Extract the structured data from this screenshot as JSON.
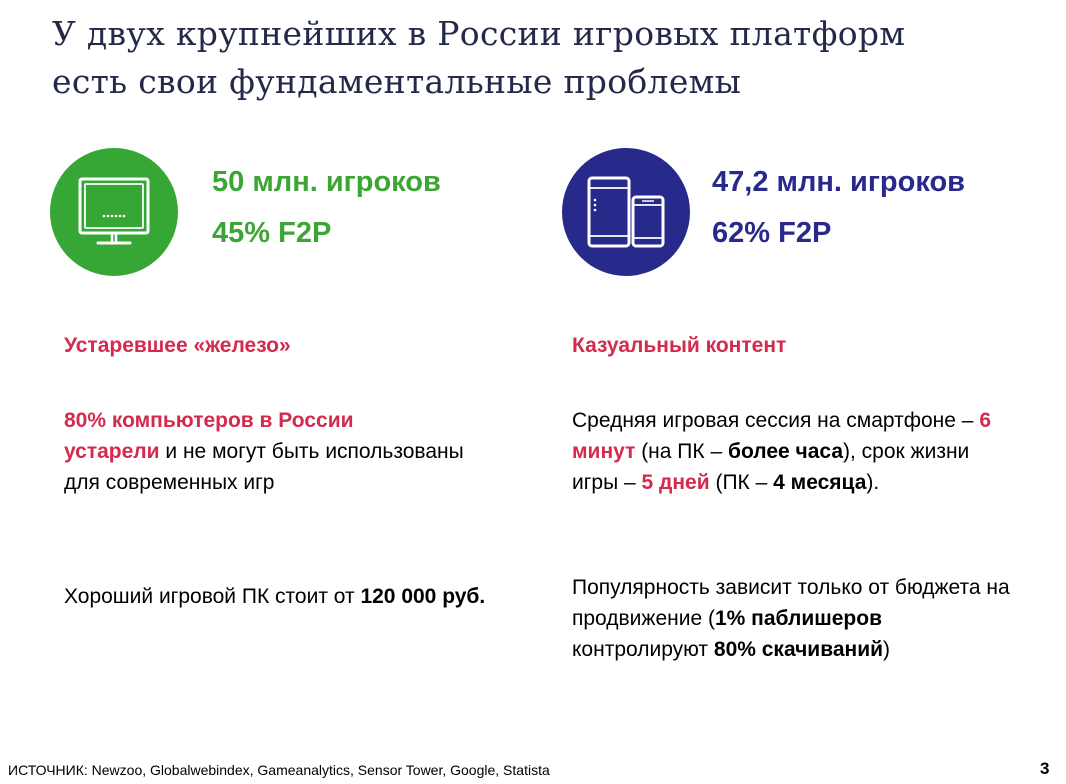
{
  "title": {
    "line1": "У двух крупнейших в России игровых платформ",
    "line2": "есть свои фундаментальные проблемы"
  },
  "colors": {
    "title": "#24294a",
    "pc_green": "#3ca536",
    "mobile_blue": "#27298b",
    "accent_red": "#d42a4e"
  },
  "pc": {
    "icon": "monitor-icon",
    "players": "50 млн. игроков",
    "f2p": "45% F2P",
    "heading": "Устаревшее «железо»",
    "para1": {
      "red1": "80% компьютеров в России",
      "red2": "устарели",
      "rest": " и не могут быть использованы для современных игр"
    },
    "para2": {
      "text": "Хороший игровой ПК стоит от ",
      "bold": "120 000 руб."
    }
  },
  "mobile": {
    "icon": "smartphone-tablet-icon",
    "players": "47,2 млн. игроков",
    "f2p": "62% F2P",
    "heading": "Казуальный контент",
    "para1": {
      "t1": "Средняя игровая сессия на смартфоне – ",
      "red1": "6 минут",
      "t2": " (на ПК – ",
      "b1": "более часа",
      "t3": "), срок жизни игры – ",
      "red2": "5 дней",
      "t4": " (ПК – ",
      "b2": "4 месяца",
      "t5": ")."
    },
    "para2": {
      "t1": "Популярность зависит только от бюджета на продвижение (",
      "b1": "1% паблишеров",
      "t2": " контролируют ",
      "b2": "80% скачиваний",
      "t3": ")"
    }
  },
  "footer": {
    "source": "ИСТОЧНИК: Newzoo, Globalwebindex, Gameanalytics, Sensor Tower, Google, Statista",
    "page": "3"
  }
}
